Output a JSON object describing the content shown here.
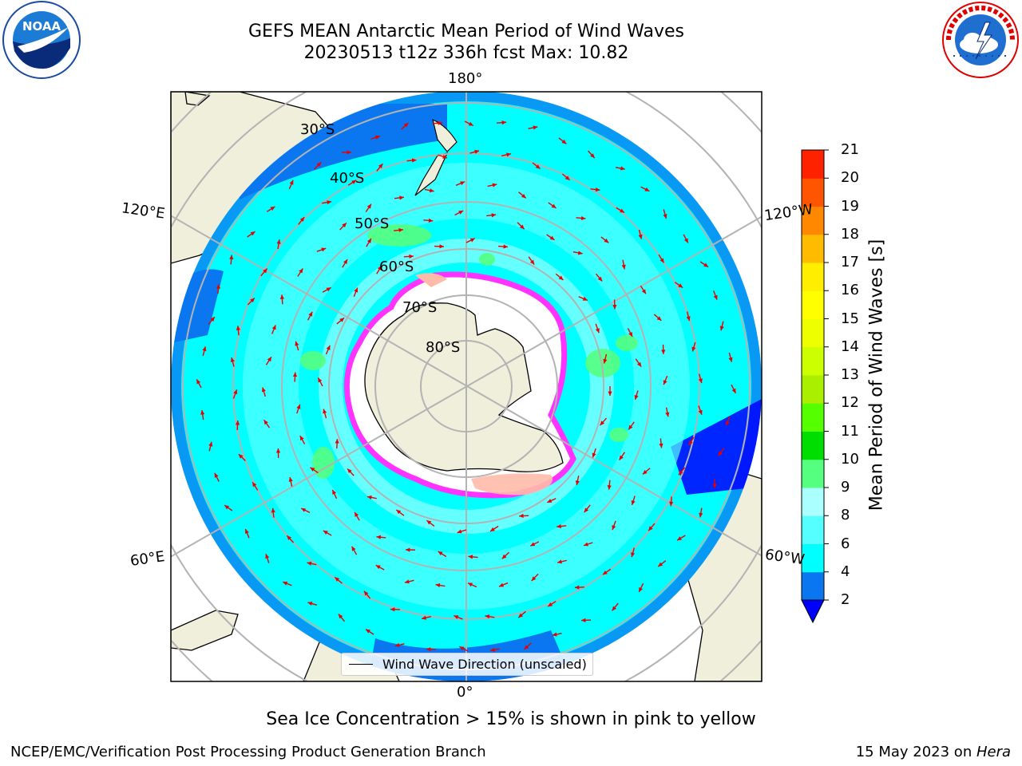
{
  "header": {
    "title_line1": "GEFS MEAN Antarctic Mean Period of Wind Waves",
    "title_line2": "20230513 t12z 336h fcst   Max: 10.82"
  },
  "logos": {
    "left_name": "NOAA",
    "left_ring_text": "NATIONAL OCEANIC AND ATMOSPHERIC ADMINISTRATION · U.S. DEPARTMENT OF COMMERCE",
    "right_ring_text": "NATIONAL WEATHER SERVICE"
  },
  "map": {
    "projection": "south-polar-stereographic",
    "lon_labels": {
      "top": "180°",
      "bottom": "0°",
      "left_upper": "120°E",
      "left_lower": "60°E",
      "right_upper": "120°W",
      "right_lower": "60°W"
    },
    "lat_labels": [
      "30°S",
      "40°S",
      "50°S",
      "60°S",
      "70°S",
      "80°S"
    ],
    "legend_text": "Wind Wave Direction (unscaled)",
    "colors": {
      "land": "#efefdc",
      "ocean_low": "#00ffff",
      "ocean_mid": "#55ffff",
      "ocean_deep": "#0a77f0",
      "ice_edge": "#ff33ff",
      "arrows": "#e60000"
    }
  },
  "colorbar": {
    "label": "Mean Period of Wind Waves [s]",
    "ticks": [
      "2",
      "4",
      "6",
      "8",
      "9",
      "10",
      "11",
      "12",
      "13",
      "14",
      "15",
      "16",
      "17",
      "18",
      "19",
      "20",
      "21"
    ],
    "colors": [
      "#0a77f0",
      "#00ffff",
      "#55ffff",
      "#aaffff",
      "#55ff80",
      "#00dd00",
      "#55ff00",
      "#aaee00",
      "#ccff00",
      "#eeff00",
      "#ffff00",
      "#ffee00",
      "#ffbb00",
      "#ff8800",
      "#ff5500",
      "#ff2200"
    ],
    "under_color": "#0000ff"
  },
  "caption": "Sea Ice Concentration > 15% is shown in pink to yellow",
  "footer": {
    "left": "NCEP/EMC/Verification Post Processing Product Generation Branch",
    "right_date": "15 May 2023 on ",
    "right_host": "Hera"
  }
}
